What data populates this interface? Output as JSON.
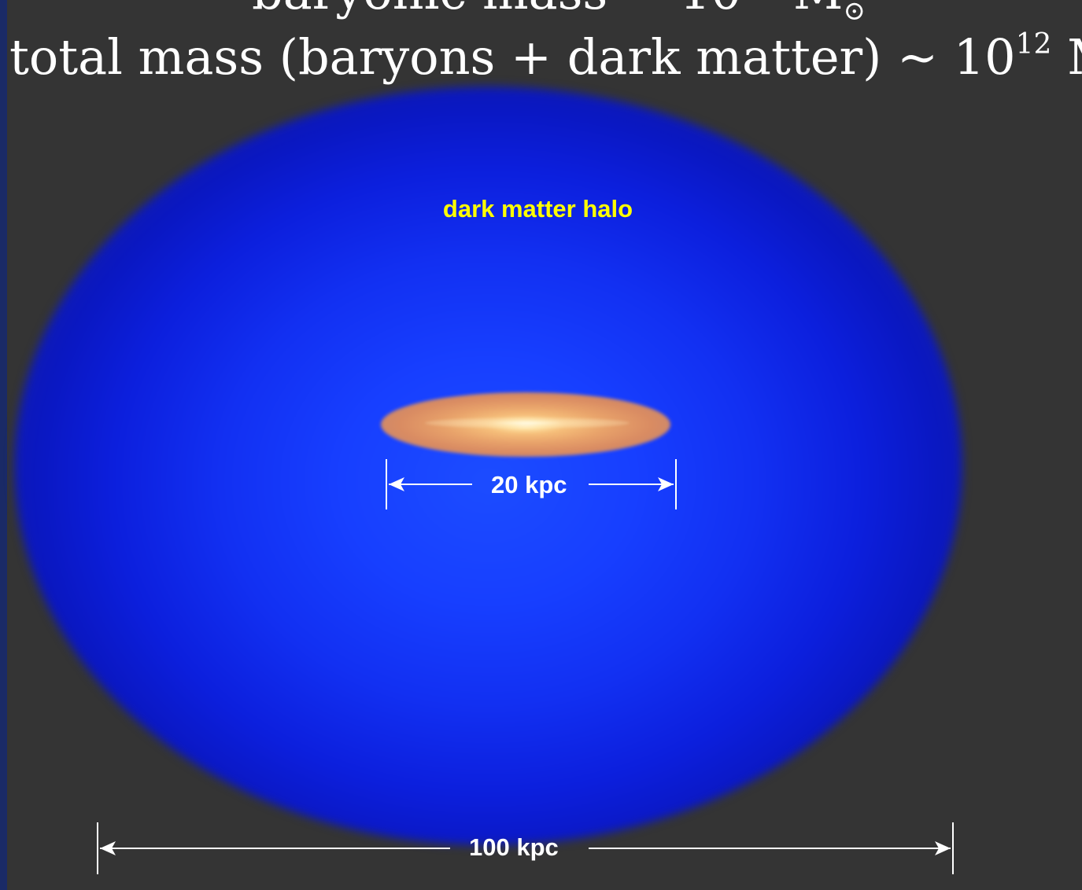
{
  "heading": {
    "line1_text": "baryonic mass ~ 10",
    "line1_exponent": "11",
    "line1_unit": "M",
    "line1_unit_sub": "⊙",
    "line2_text": "total mass (baryons + dark matter) ~ 10",
    "line2_exponent": "12",
    "line2_unit": "M",
    "line2_unit_sub": "⊙"
  },
  "diagram": {
    "halo_label": "dark matter halo",
    "galaxy_scale_label": "20 kpc",
    "halo_scale_label": "100 kpc"
  },
  "colors": {
    "background": "#343434",
    "halo_center": "#1c4cff",
    "halo_edge": "#0a17c0",
    "galaxy_core": "#fffbe6",
    "galaxy_disk": "#e8a26a",
    "halo_label": "#ffff00",
    "scale_text": "#ffffff",
    "math_text": "#ffffff"
  }
}
